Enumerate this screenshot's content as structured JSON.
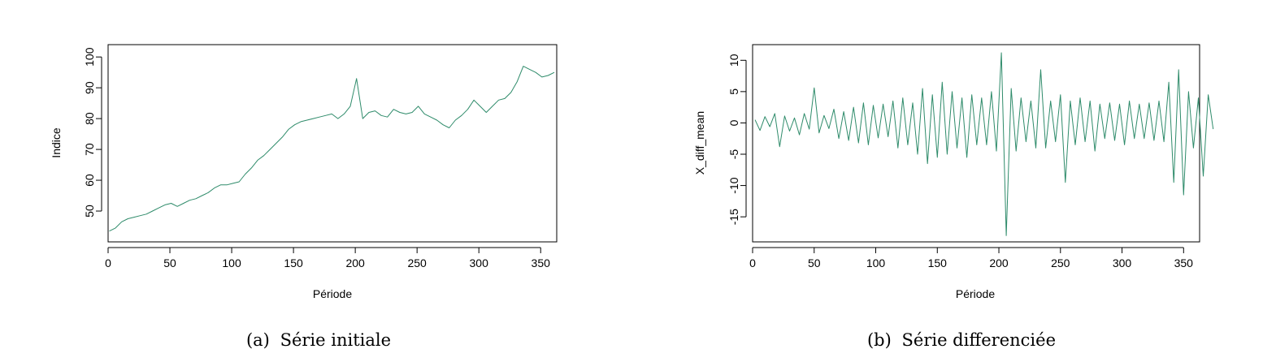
{
  "captions": [
    {
      "tag": "(a)",
      "text": "Série initiale"
    },
    {
      "tag": "(b)",
      "text": "Série differenciée"
    }
  ],
  "series_color": "#2e8b6a",
  "chart_data": [
    {
      "type": "line",
      "xlabel": "Période",
      "ylabel": "Indice",
      "xlim": [
        0,
        363
      ],
      "ylim": [
        40,
        104
      ],
      "xticks": [
        0,
        50,
        100,
        150,
        200,
        250,
        300,
        350
      ],
      "yticks": [
        50,
        60,
        70,
        80,
        90,
        100
      ],
      "grid": false,
      "series": [
        {
          "x_start": 1,
          "x_step": 5,
          "values": [
            43.5,
            44.5,
            46.5,
            47.5,
            48.0,
            48.5,
            49.0,
            50.0,
            51.0,
            52.0,
            52.5,
            51.5,
            52.5,
            53.5,
            54.0,
            55.0,
            56.0,
            57.5,
            58.5,
            58.5,
            59.0,
            59.5,
            62.0,
            64.0,
            66.5,
            68.0,
            70.0,
            72.0,
            74.0,
            76.5,
            78.0,
            79.0,
            79.5,
            80.0,
            80.5,
            81.0,
            81.5,
            80.0,
            81.5,
            84.0,
            93.0,
            80.0,
            82.0,
            82.5,
            81.0,
            80.5,
            83.0,
            82.0,
            81.5,
            82.0,
            84.0,
            81.5,
            80.5,
            79.5,
            78.0,
            77.0,
            79.5,
            81.0,
            83.0,
            86.0,
            84.0,
            82.0,
            84.0,
            86.0,
            86.5,
            88.5,
            92.0,
            97.0,
            96.0,
            95.0,
            93.5,
            94.0,
            95.0
          ]
        }
      ]
    },
    {
      "type": "line",
      "xlabel": "Période",
      "ylabel": "X_diff_mean",
      "xlim": [
        0,
        363
      ],
      "ylim": [
        -19,
        12.5
      ],
      "xticks": [
        0,
        50,
        100,
        150,
        200,
        250,
        300,
        350
      ],
      "yticks": [
        -15,
        -10,
        -5,
        0,
        5,
        10
      ],
      "grid": false,
      "series": [
        {
          "x_start": 2,
          "x_step": 4,
          "values": [
            0.5,
            -1.2,
            1.0,
            -0.6,
            1.5,
            -3.8,
            1.1,
            -1.3,
            0.8,
            -1.9,
            1.5,
            -1.0,
            5.6,
            -1.6,
            1.2,
            -0.9,
            2.2,
            -2.5,
            1.8,
            -2.8,
            2.5,
            -3.2,
            3.2,
            -3.5,
            2.8,
            -2.4,
            3.0,
            -2.2,
            3.5,
            -4.0,
            4.0,
            -3.5,
            3.2,
            -5.0,
            5.5,
            -6.5,
            4.5,
            -5.5,
            6.5,
            -5.0,
            5.0,
            -4.0,
            4.0,
            -5.5,
            4.5,
            -3.5,
            4.0,
            -3.5,
            5.0,
            -4.5,
            11.2,
            -18.0,
            5.5,
            -4.5,
            4.0,
            -3.0,
            3.5,
            -4.0,
            8.5,
            -4.0,
            3.5,
            -3.0,
            4.5,
            -9.5,
            3.5,
            -3.5,
            4.0,
            -3.0,
            3.5,
            -4.5,
            3.0,
            -2.5,
            3.2,
            -2.8,
            3.0,
            -3.5,
            3.5,
            -2.5,
            3.0,
            -2.5,
            3.2,
            -2.8,
            3.5,
            -3.0,
            6.5,
            -9.5,
            8.5,
            -11.5,
            5.0,
            -4.0,
            4.0,
            -8.5,
            4.5,
            -1.0
          ]
        }
      ]
    }
  ]
}
